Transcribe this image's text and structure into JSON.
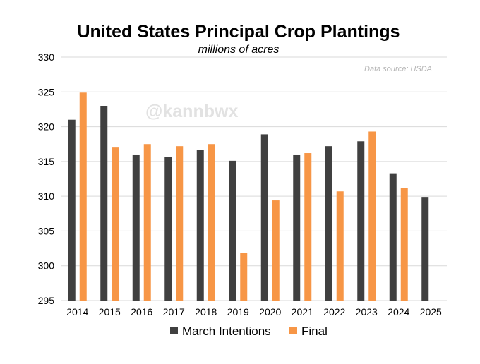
{
  "chart_data": {
    "type": "bar",
    "title": "United States Principal Crop Plantings",
    "subtitle": "millions of acres",
    "source": "Data source: USDA",
    "watermark": "@kannbwx",
    "xlabel": "",
    "ylabel": "",
    "ylim": [
      295,
      330
    ],
    "yticks": [
      "330",
      "325",
      "320",
      "315",
      "310",
      "305",
      "300",
      "295"
    ],
    "categories": [
      "2014",
      "2015",
      "2016",
      "2017",
      "2018",
      "2019",
      "2020",
      "2021",
      "2022",
      "2023",
      "2024",
      "2025"
    ],
    "grid": true,
    "legend_position": "bottom",
    "series": [
      {
        "name": "March Intentions",
        "color": "#404040",
        "values": [
          321.0,
          323.0,
          315.9,
          315.6,
          316.7,
          315.1,
          318.9,
          315.9,
          317.2,
          317.9,
          313.3,
          309.9
        ]
      },
      {
        "name": "Final",
        "color": "#f79646",
        "values": [
          324.9,
          317.0,
          317.5,
          317.2,
          317.5,
          301.8,
          309.4,
          316.2,
          310.7,
          319.3,
          311.2,
          null
        ]
      }
    ]
  }
}
